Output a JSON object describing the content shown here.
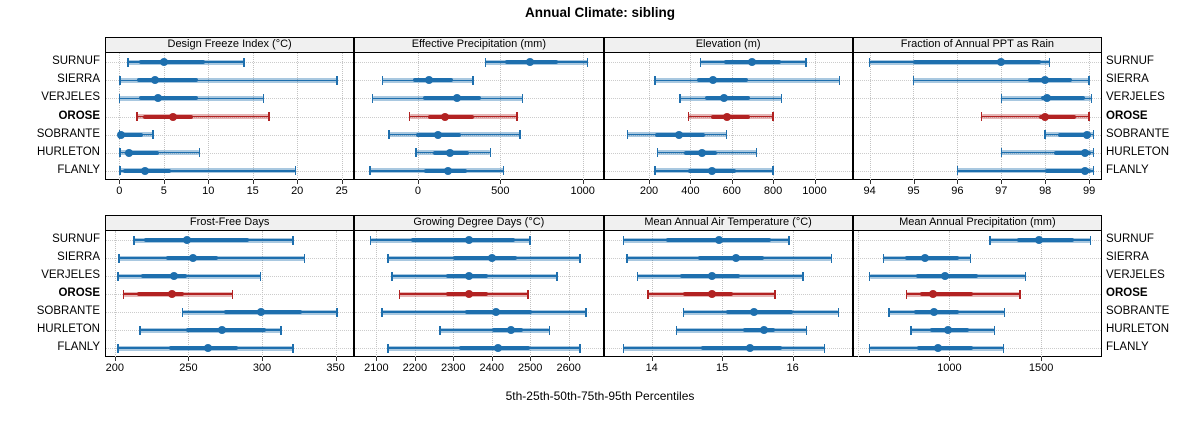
{
  "chart_data": {
    "type": "scatter",
    "style": "percentile-interval-dotplot",
    "title": "Annual Climate: sibling",
    "caption": "5th-25th-50th-75th-95th Percentiles",
    "percentiles": [
      5,
      25,
      50,
      75,
      95
    ],
    "stations": [
      "SURNUF",
      "SIERRA",
      "VERJELES",
      "OROSE",
      "SOBRANTE",
      "HURLETON",
      "FLANLY"
    ],
    "highlight_station": "OROSE",
    "legend_position": "none",
    "grid": "dotted",
    "colors": {
      "series_solid": "#1E6FAE",
      "series_band": "rgba(30,111,174,0.38)",
      "highlight_solid": "#B22222",
      "highlight_band": "rgba(178,34,34,0.33)",
      "strip_bg": "#f0f0f0",
      "panel_border": "#000000",
      "grid": "#c8c8c8"
    },
    "panels": [
      {
        "title": "Design Freeze Index (°C)",
        "row": 0,
        "col": 0,
        "xlim": [
          -1.5,
          26.3
        ],
        "ticks": [
          0,
          5,
          10,
          15,
          20,
          25
        ],
        "values": [
          [
            1,
            2.2,
            5,
            9.6,
            14
          ],
          [
            0.1,
            2,
            4,
            8.8,
            24.5
          ],
          [
            0,
            2.2,
            4.3,
            8.8,
            16.2
          ],
          [
            2,
            2.7,
            6,
            8.3,
            16.8
          ],
          [
            0,
            0,
            0.2,
            2.7,
            3.8
          ],
          [
            0.1,
            0.6,
            1.1,
            4.5,
            9
          ],
          [
            0.1,
            0.4,
            2.9,
            5.8,
            19.8
          ]
        ]
      },
      {
        "title": "Effective Precipitation (mm)",
        "row": 0,
        "col": 1,
        "xlim": [
          -380,
          1120
        ],
        "ticks": [
          0,
          500,
          1000
        ],
        "values": [
          [
            410,
            530,
            680,
            850,
            1030
          ],
          [
            -215,
            -30,
            65,
            215,
            335
          ],
          [
            -275,
            30,
            240,
            380,
            635
          ],
          [
            -50,
            60,
            165,
            340,
            600
          ],
          [
            -175,
            -10,
            120,
            260,
            620
          ],
          [
            -10,
            90,
            195,
            310,
            440
          ],
          [
            -290,
            35,
            180,
            300,
            520
          ]
        ]
      },
      {
        "title": "Elevation (m)",
        "row": 0,
        "col": 2,
        "xlim": [
          -15,
          1180
        ],
        "ticks": [
          200,
          400,
          600,
          800,
          1000
        ],
        "values": [
          [
            450,
            560,
            700,
            840,
            960
          ],
          [
            230,
            430,
            510,
            680,
            1120
          ],
          [
            350,
            470,
            560,
            690,
            840
          ],
          [
            390,
            500,
            575,
            690,
            800
          ],
          [
            95,
            230,
            345,
            470,
            575
          ],
          [
            240,
            370,
            455,
            530,
            720
          ],
          [
            230,
            390,
            505,
            620,
            800
          ]
        ]
      },
      {
        "title": "Fraction of Annual PPT as Rain",
        "row": 0,
        "col": 3,
        "xlim": [
          93.64,
          99.27
        ],
        "ticks": [
          94,
          95,
          96,
          97,
          98,
          99
        ],
        "values": [
          [
            94,
            95,
            97,
            97.9,
            98.1
          ],
          [
            95,
            97.6,
            98,
            98.6,
            99
          ],
          [
            97,
            97.9,
            98.05,
            98.9,
            99.05
          ],
          [
            96.55,
            97.85,
            98,
            98.7,
            99
          ],
          [
            98,
            98.3,
            98.95,
            99.05,
            99.1
          ],
          [
            97,
            98.2,
            98.9,
            99.05,
            99.1
          ],
          [
            96,
            98,
            98.9,
            99.05,
            99.1
          ]
        ]
      },
      {
        "title": "Frost-Free Days",
        "row": 1,
        "col": 0,
        "xlim": [
          194,
          362
        ],
        "ticks": [
          200,
          250,
          300,
          350
        ],
        "values": [
          [
            213,
            220,
            249,
            291,
            321
          ],
          [
            203,
            235,
            253,
            270,
            329
          ],
          [
            202,
            218,
            240,
            249,
            299
          ],
          [
            206,
            215,
            239,
            247,
            280
          ],
          [
            246,
            274,
            299,
            327,
            351
          ],
          [
            217,
            248,
            273,
            303,
            313
          ],
          [
            202,
            237,
            263,
            284,
            321
          ]
        ]
      },
      {
        "title": "Growing Degree Days (°C)",
        "row": 1,
        "col": 1,
        "xlim": [
          2045,
          2688
        ],
        "ticks": [
          2100,
          2200,
          2300,
          2400,
          2500,
          2600
        ],
        "values": [
          [
            2085,
            2190,
            2340,
            2460,
            2500
          ],
          [
            2130,
            2300,
            2400,
            2465,
            2630
          ],
          [
            2140,
            2280,
            2340,
            2390,
            2570
          ],
          [
            2160,
            2280,
            2340,
            2390,
            2495
          ],
          [
            2115,
            2330,
            2410,
            2505,
            2645
          ],
          [
            2265,
            2400,
            2450,
            2480,
            2550
          ],
          [
            2130,
            2315,
            2415,
            2500,
            2630
          ]
        ]
      },
      {
        "title": "Mean Annual Air Temperature (°C)",
        "row": 1,
        "col": 2,
        "xlim": [
          13.33,
          16.84
        ],
        "ticks": [
          14,
          15,
          16
        ],
        "values": [
          [
            13.6,
            14.2,
            14.95,
            15.7,
            15.95
          ],
          [
            13.65,
            14.65,
            15.2,
            15.6,
            16.55
          ],
          [
            13.8,
            14.4,
            14.85,
            15.25,
            16.15
          ],
          [
            13.95,
            14.45,
            14.85,
            15.15,
            15.75
          ],
          [
            14.45,
            15.05,
            15.45,
            16.0,
            16.65
          ],
          [
            14.35,
            15.3,
            15.6,
            15.75,
            16.2
          ],
          [
            13.6,
            14.7,
            15.4,
            15.85,
            16.45
          ]
        ]
      },
      {
        "title": "Mean Annual Precipitation (mm)",
        "row": 1,
        "col": 3,
        "xlim": [
          478,
          1827
        ],
        "ticks": [
          1000,
          1500
        ],
        "extra_grid": [
          500
        ],
        "values": [
          [
            1220,
            1370,
            1490,
            1680,
            1770
          ],
          [
            640,
            760,
            865,
            1050,
            1115
          ],
          [
            565,
            815,
            975,
            1155,
            1415
          ],
          [
            765,
            840,
            910,
            1130,
            1385
          ],
          [
            670,
            805,
            915,
            1050,
            1300
          ],
          [
            790,
            895,
            990,
            1105,
            1245
          ],
          [
            565,
            825,
            940,
            1130,
            1295
          ]
        ]
      }
    ]
  }
}
